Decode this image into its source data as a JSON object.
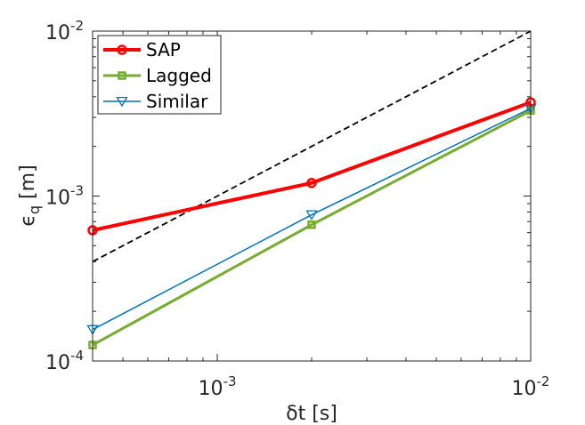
{
  "chart_data": {
    "type": "line",
    "xscale": "log",
    "yscale": "log",
    "xlabel": "δt [s]",
    "ylabel": "ϵ_q [m]",
    "xlim": [
      0.0004,
      0.01
    ],
    "ylim": [
      0.0001,
      0.01
    ],
    "grid": false,
    "legend_position": "top-left",
    "x_ticks": [
      {
        "value": 0.001,
        "base": "10",
        "exp": "-3"
      },
      {
        "value": 0.01,
        "base": "10",
        "exp": "-2"
      }
    ],
    "y_ticks": [
      {
        "value": 0.0001,
        "base": "10",
        "exp": "-4"
      },
      {
        "value": 0.001,
        "base": "10",
        "exp": "-3"
      },
      {
        "value": 0.01,
        "base": "10",
        "exp": "-2"
      }
    ],
    "series": [
      {
        "name": "SAP",
        "color": "#ff0000",
        "marker": "circle",
        "line_width": 4,
        "x": [
          0.0004,
          0.002,
          0.01
        ],
        "y": [
          0.00062,
          0.0012,
          0.0037
        ]
      },
      {
        "name": "Lagged",
        "color": "#77ac30",
        "marker": "square",
        "line_width": 3,
        "x": [
          0.0004,
          0.002,
          0.01
        ],
        "y": [
          0.000125,
          0.00067,
          0.0033
        ]
      },
      {
        "name": "Similar",
        "color": "#0072bd",
        "marker": "triangle-down",
        "line_width": 1.5,
        "x": [
          0.0004,
          0.002,
          0.01
        ],
        "y": [
          0.000155,
          0.00077,
          0.0034
        ]
      }
    ],
    "reference_line": {
      "color": "#000000",
      "style": "dashed",
      "x": [
        0.0004,
        0.01
      ],
      "y": [
        0.0004,
        0.01
      ]
    }
  }
}
